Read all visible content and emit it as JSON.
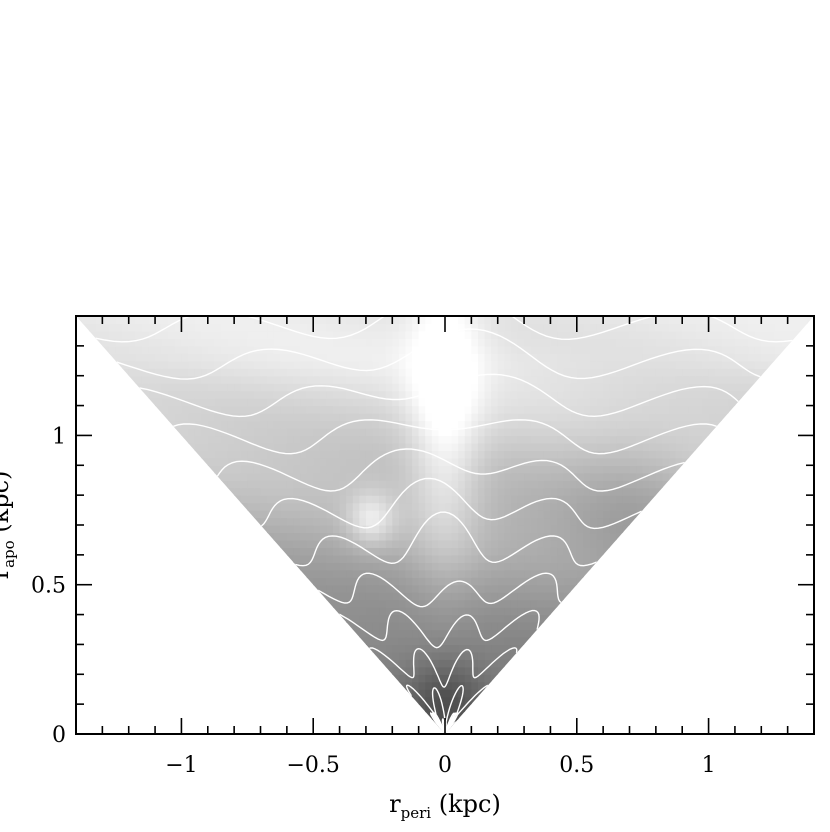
{
  "chart_data": {
    "type": "heatmap",
    "title": "",
    "xlabel": {
      "main": "r",
      "sub": "peri",
      "rest": "  (kpc)"
    },
    "ylabel": {
      "main": "r",
      "sub": "apo",
      "rest": "  (kpc)"
    },
    "xlim": [
      -1.4,
      1.4
    ],
    "ylim": [
      0,
      1.4
    ],
    "x_ticks": [
      {
        "value": -1,
        "label": "−1"
      },
      {
        "value": -0.5,
        "label": "−0.5"
      },
      {
        "value": 0,
        "label": "0"
      },
      {
        "value": 0.5,
        "label": "0.5"
      },
      {
        "value": 1,
        "label": "1"
      }
    ],
    "y_ticks": [
      {
        "value": 0,
        "label": "0"
      },
      {
        "value": 0.5,
        "label": "0.5"
      },
      {
        "value": 1,
        "label": "1"
      }
    ],
    "x_minor_step": 0.1,
    "y_minor_step": 0.1,
    "domain": "triangle |x| <= y",
    "colormap": "grayscale, dark = low, light = high",
    "contour_color": "#ffffff",
    "contour_levels": 14
  }
}
